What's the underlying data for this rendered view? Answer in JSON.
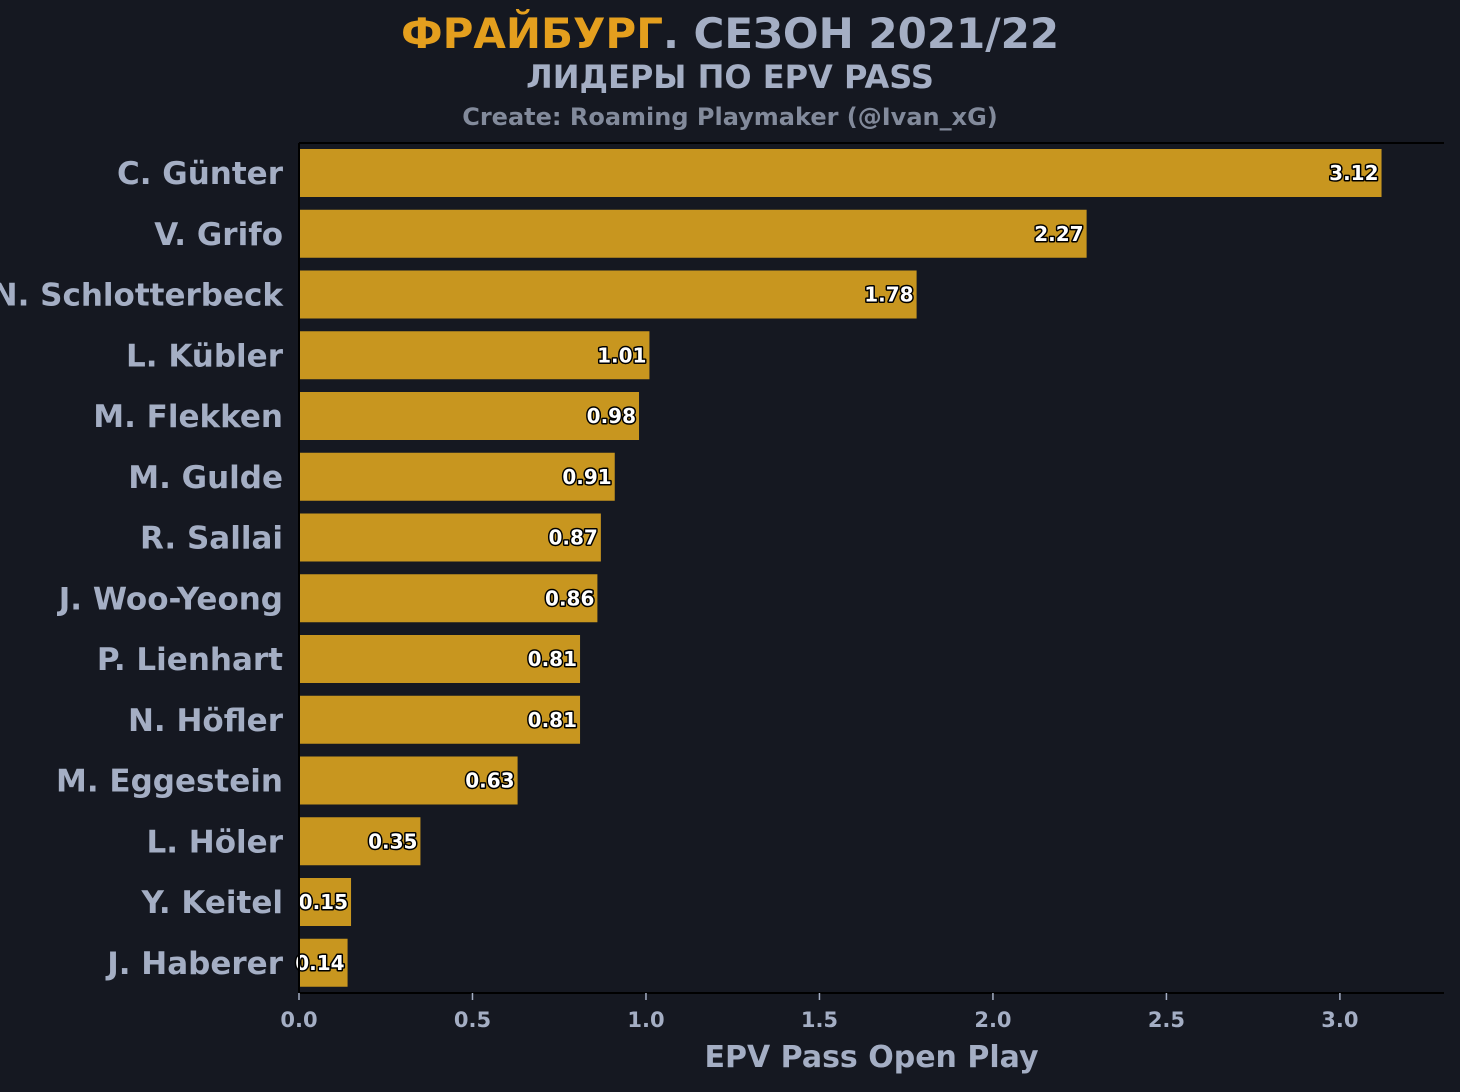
{
  "header": {
    "title_accent": "ФРАЙБУРГ",
    "title_rest": ". СЕЗОН 2021/22",
    "subtitle": "ЛИДЕРЫ ПО EPV PASS",
    "credit": "Create: Roaming Playmaker (@Ivan_xG)"
  },
  "colors": {
    "background": "#151821",
    "bar": "#c8961f",
    "accent": "#e49f1e",
    "text": "#a4aec4"
  },
  "chart_data": {
    "type": "bar",
    "orientation": "horizontal",
    "title": "ФРАЙБУРГ. СЕЗОН 2021/22",
    "subtitle": "ЛИДЕРЫ ПО EPV PASS",
    "xlabel": "EPV Pass Open Play",
    "ylabel": "",
    "xlim": [
      0,
      3.3
    ],
    "xticks": [
      "0.0",
      "0.5",
      "1.0",
      "1.5",
      "2.0",
      "2.5",
      "3.0"
    ],
    "grid": false,
    "categories": [
      "C. Günter",
      "V. Grifo",
      "N. Schlotterbeck",
      "L. Kübler",
      "M. Flekken",
      "M. Gulde",
      "R. Sallai",
      "J. Woo-Yeong",
      "P. Lienhart",
      "N. Höfler",
      "M. Eggestein",
      "L. Höler",
      "Y. Keitel",
      "J. Haberer"
    ],
    "values": [
      3.12,
      2.27,
      1.78,
      1.01,
      0.98,
      0.91,
      0.87,
      0.86,
      0.81,
      0.81,
      0.63,
      0.35,
      0.15,
      0.14
    ],
    "value_labels": [
      "3.12",
      "2.27",
      "1.78",
      "1.01",
      "0.98",
      "0.91",
      "0.87",
      "0.86",
      "0.81",
      "0.81",
      "0.63",
      "0.35",
      "0.15",
      "0.14"
    ]
  }
}
